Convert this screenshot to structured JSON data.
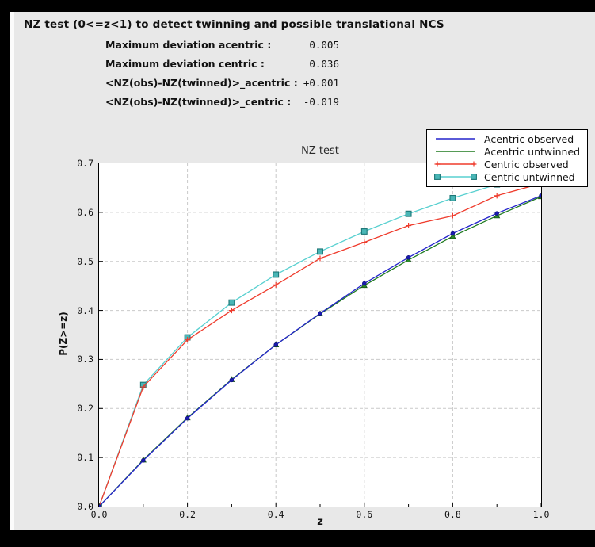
{
  "header": {
    "title": "NZ test (0<=z<1) to detect twinning and possible translational NCS"
  },
  "stats": {
    "rows": [
      {
        "label": "Maximum deviation acentric :",
        "value": "0.005"
      },
      {
        "label": "Maximum deviation centric :",
        "value": "0.036"
      },
      {
        "label": "<NZ(obs)-NZ(twinned)>_acentric :",
        "value": "+0.001"
      },
      {
        "label": "<NZ(obs)-NZ(twinned)>_centric :",
        "value": "-0.019"
      }
    ]
  },
  "chart_data": {
    "type": "line",
    "title": "NZ test",
    "xlabel": "z",
    "ylabel": "P(Z>=z)",
    "xlim": [
      0,
      1.0
    ],
    "ylim": [
      0,
      0.7
    ],
    "grid": true,
    "legend_position": "upper right",
    "x_tick_values": [
      0,
      0.2,
      0.4,
      0.6,
      0.8,
      1.0
    ],
    "x_tick_labels": [
      "0.0",
      "0.2",
      "0.4",
      "0.6",
      "0.8",
      "1.0"
    ],
    "y_tick_values": [
      0,
      0.1,
      0.2,
      0.3,
      0.4,
      0.5,
      0.6,
      0.7
    ],
    "y_tick_labels": [
      "0.0",
      "0.1",
      "0.2",
      "0.3",
      "0.4",
      "0.5",
      "0.6",
      "0.7"
    ],
    "x_grid": [
      0.2,
      0.4,
      0.6,
      0.8
    ],
    "y_grid": [
      0.1,
      0.2,
      0.3,
      0.4,
      0.5,
      0.6
    ],
    "x_minor_ticks": [
      0.1,
      0.3,
      0.5,
      0.7,
      0.9
    ],
    "grid_color": "#c9c9c9",
    "x": [
      0.0,
      0.1,
      0.2,
      0.3,
      0.4,
      0.5,
      0.6,
      0.7,
      0.8,
      0.9,
      1.0
    ],
    "series": [
      {
        "id": "acentric-observed",
        "name": "Acentric observed",
        "color": "#2424cc",
        "marker": "circle",
        "marker_color": "#1a1ab0",
        "marker_edge": "#10107a",
        "legend_marker": "none",
        "values": [
          0.0,
          0.094,
          0.18,
          0.258,
          0.33,
          0.394,
          0.455,
          0.508,
          0.557,
          0.598,
          0.634
        ]
      },
      {
        "id": "acentric-untwinned",
        "name": "Acentric untwinned",
        "color": "#1f7a1f",
        "marker": "triangle",
        "marker_color": "#2a8a2a",
        "marker_edge": "#145214",
        "legend_marker": "none",
        "values": [
          0.0,
          0.095,
          0.181,
          0.259,
          0.33,
          0.393,
          0.451,
          0.503,
          0.551,
          0.593,
          0.632
        ]
      },
      {
        "id": "centric-observed",
        "name": "Centric observed",
        "color": "#ef3b2c",
        "marker": "plus",
        "marker_color": "#ef3b2c",
        "marker_edge": "#ef3b2c",
        "legend_marker": "plus",
        "values": [
          0.0,
          0.244,
          0.34,
          0.4,
          0.452,
          0.506,
          0.539,
          0.573,
          0.593,
          0.634,
          0.659
        ]
      },
      {
        "id": "centric-untwinned",
        "name": "Centric untwinned",
        "color": "#58d0d0",
        "marker": "square",
        "marker_color": "#49b6b6",
        "marker_edge": "#1d7676",
        "legend_marker": "square",
        "values": [
          0.0,
          0.248,
          0.345,
          0.416,
          0.473,
          0.52,
          0.561,
          0.597,
          0.629,
          0.657,
          0.683
        ]
      }
    ]
  }
}
